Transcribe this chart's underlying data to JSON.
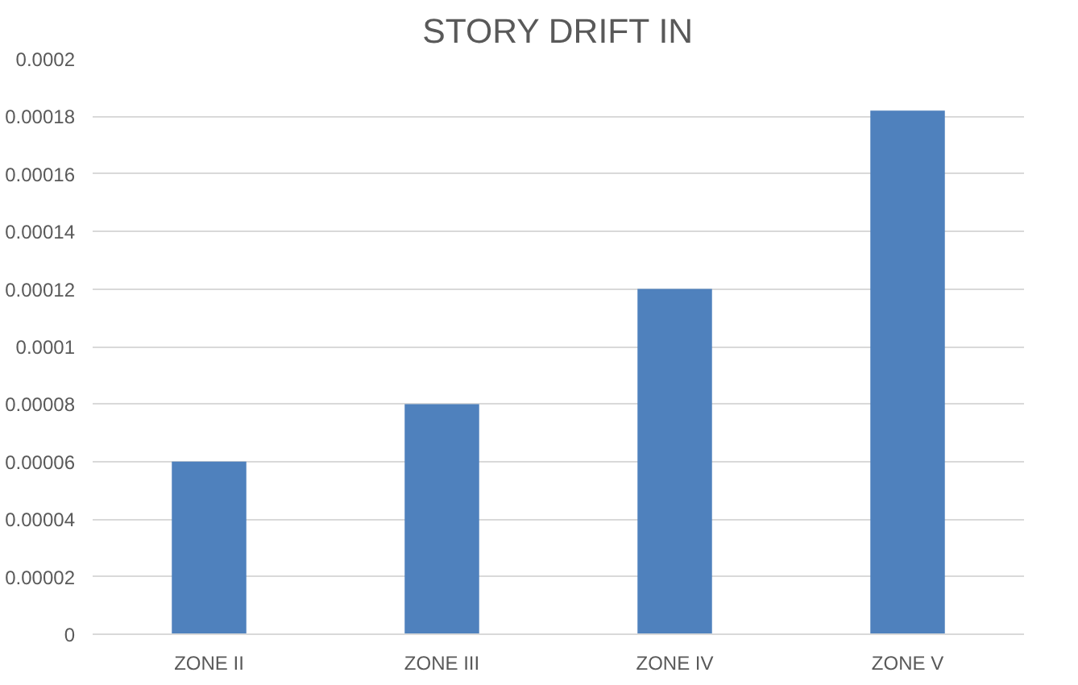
{
  "chart_data": {
    "type": "bar",
    "title": "STORY DRIFT IN",
    "categories": [
      "ZONE II",
      "ZONE III",
      "ZONE IV",
      "ZONE V"
    ],
    "values": [
      6e-05,
      8e-05,
      0.00012,
      0.000182
    ],
    "color": "#4f81bd",
    "ylim": [
      0,
      0.0002
    ],
    "yticks": [
      0,
      {
        "value": 2e-05,
        "label": "0.00002"
      },
      {
        "value": 4e-05,
        "label": "0.00004"
      },
      {
        "value": 6e-05,
        "label": "0.00006"
      },
      {
        "value": 8e-05,
        "label": "0.00008"
      },
      0.0001,
      0.00012,
      0.00014,
      0.00016,
      0.00018,
      0.0002
    ],
    "grid": "y"
  }
}
